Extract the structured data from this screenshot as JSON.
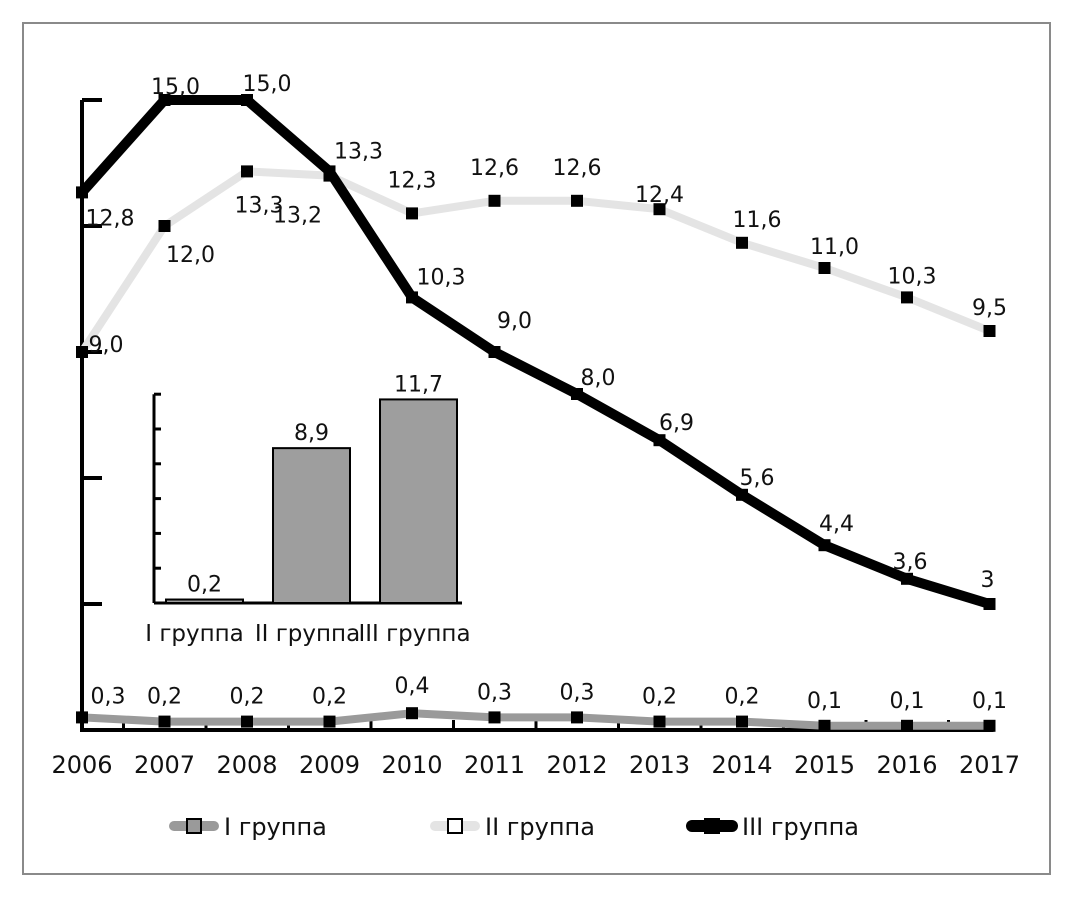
{
  "chart_data": {
    "type": "line",
    "title": "",
    "xlabel": "",
    "ylabel": "",
    "ylim": [
      0,
      15
    ],
    "y_tick_step": 3,
    "y_tick_labels_shown": false,
    "grid": false,
    "legend_position": "bottom",
    "x": [
      "2006",
      "2007",
      "2008",
      "2009",
      "2010",
      "2011",
      "2012",
      "2013",
      "2014",
      "2015",
      "2016",
      "2017"
    ],
    "series": [
      {
        "name": "I группа",
        "color": "#9a9a9a",
        "values": [
          0.3,
          0.2,
          0.2,
          0.2,
          0.4,
          0.3,
          0.3,
          0.2,
          0.2,
          0.1,
          0.1,
          0.1
        ],
        "labels": [
          "0,3",
          "0,2",
          "0,2",
          "0,2",
          "0,4",
          "0,3",
          "0,3",
          "0,2",
          "0,2",
          "0,1",
          "0,1",
          "0,1"
        ]
      },
      {
        "name": "II группа",
        "color": "#e4e4e4",
        "values": [
          9.0,
          12.0,
          13.3,
          13.2,
          12.3,
          12.6,
          12.6,
          12.4,
          11.6,
          11.0,
          10.3,
          9.5
        ],
        "labels": [
          "9,0",
          "12,0",
          "13,3",
          "13,2",
          "12,3",
          "12,6",
          "12,6",
          "12,4",
          "11,6",
          "11,0",
          "10,3",
          "9,5"
        ]
      },
      {
        "name": "III группа",
        "color": "#000000",
        "values": [
          12.8,
          15.0,
          15.0,
          13.3,
          10.3,
          9.0,
          8.0,
          6.9,
          5.6,
          4.4,
          3.6,
          3
        ],
        "labels": [
          "12,8",
          "15,0",
          "15,0",
          "13,3",
          "10,3",
          "9,0",
          "8,0",
          "6,9",
          "5,6",
          "4,4",
          "3,6",
          "3"
        ]
      }
    ],
    "inset": {
      "type": "bar",
      "categories": [
        "I группа",
        "II группа",
        "III группа"
      ],
      "values": [
        0.2,
        8.9,
        11.7
      ],
      "labels": [
        "0,2",
        "8,9",
        "11,7"
      ],
      "ylim": [
        0,
        12
      ],
      "y_tick_step": 2,
      "bar_color": "#9e9e9e"
    }
  }
}
